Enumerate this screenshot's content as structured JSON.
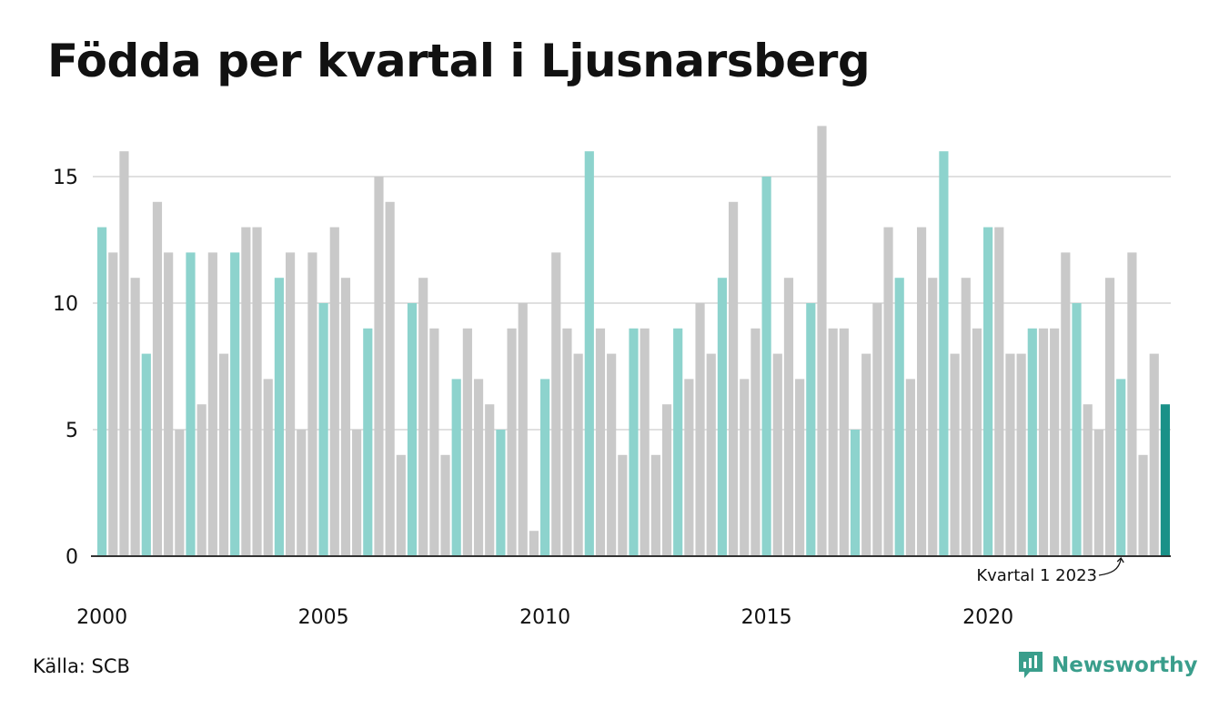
{
  "title": "Födda per kvartal i Ljusnarsberg",
  "source": "Källa: SCB",
  "brand": "Newsworthy",
  "colors": {
    "q1": "#8dd3cd",
    "other": "#c9c9c9",
    "highlight": "#1a9188",
    "grid": "#e0e0e0",
    "axis": "#333333",
    "brand": "#3a9e8c"
  },
  "chart_data": {
    "type": "bar",
    "title": "Födda per kvartal i Ljusnarsberg",
    "xlabel": "",
    "ylabel": "",
    "start_year": 2000,
    "quarters_per_year": 4,
    "values": [
      13,
      12,
      16,
      11,
      8,
      14,
      12,
      5,
      12,
      6,
      12,
      8,
      12,
      13,
      13,
      7,
      11,
      12,
      5,
      12,
      10,
      13,
      11,
      5,
      9,
      15,
      14,
      4,
      10,
      11,
      9,
      4,
      7,
      9,
      7,
      6,
      5,
      9,
      10,
      1,
      7,
      12,
      9,
      8,
      16,
      9,
      8,
      4,
      9,
      9,
      4,
      6,
      9,
      7,
      10,
      8,
      11,
      14,
      7,
      9,
      15,
      8,
      11,
      7,
      10,
      17,
      9,
      9,
      5,
      8,
      10,
      13,
      11,
      7,
      13,
      11,
      16,
      8,
      11,
      9,
      13,
      13,
      8,
      8,
      9,
      9,
      9,
      12,
      10,
      6,
      5,
      11,
      7,
      12,
      4,
      8,
      6
    ],
    "ylim": [
      0,
      17
    ],
    "yticks": [
      0,
      5,
      10,
      15
    ],
    "xticks": [
      "2000",
      "2005",
      "2010",
      "2015",
      "2020"
    ],
    "grid": true,
    "annotation": "Kvartal 1 2023"
  }
}
